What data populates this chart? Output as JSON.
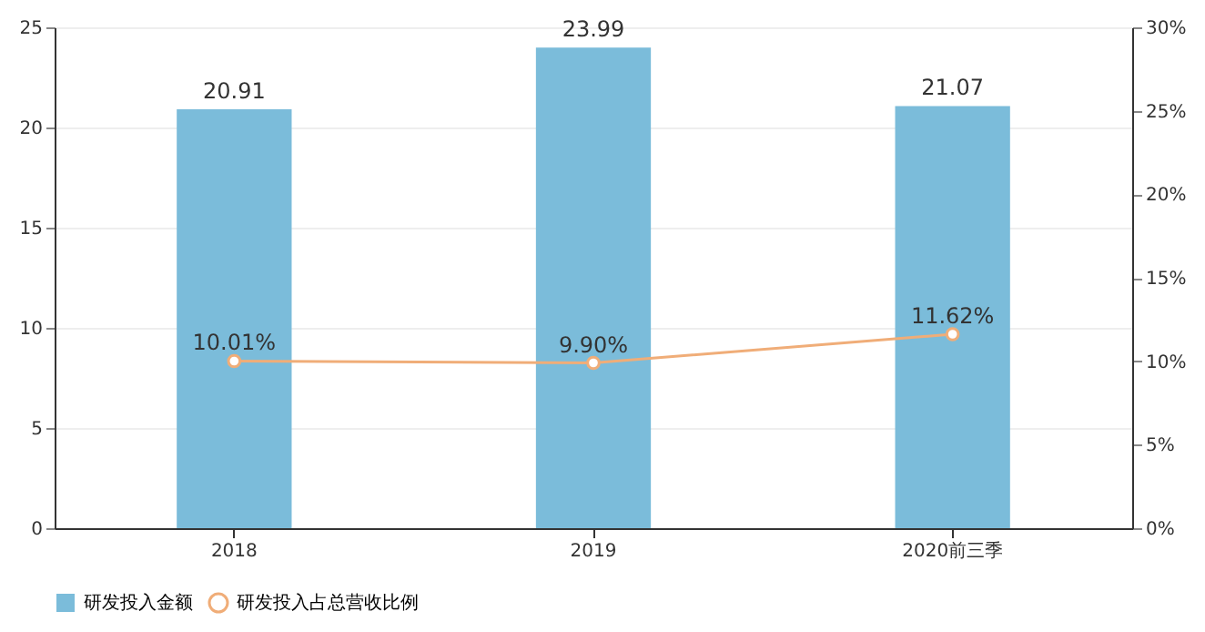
{
  "chart_data": {
    "type": "bar",
    "categories": [
      "2018",
      "2019",
      "2020前三季"
    ],
    "series": [
      {
        "name": "研发投入金额",
        "color": "#7bbcda",
        "values": [
          20.91,
          23.99,
          21.07
        ],
        "value_labels": [
          "20.91",
          "23.99",
          "21.07"
        ]
      },
      {
        "name": "研发投入占总营收比例",
        "type": "line",
        "axis": "y2",
        "color": "#f0ad78",
        "values": [
          10.01,
          9.9,
          11.62
        ],
        "value_labels": [
          "10.01%",
          "9.90%",
          "11.62%"
        ],
        "marker": "circle"
      }
    ],
    "ylim": [
      0,
      25
    ],
    "yticks": [
      0,
      5,
      10,
      15,
      20,
      25
    ],
    "y2lim": [
      0,
      30
    ],
    "y2ticks": [
      {
        "value": 0,
        "label": "0%"
      },
      {
        "value": 5,
        "label": "5%"
      },
      {
        "value": 10,
        "label": "10%"
      },
      {
        "value": 15,
        "label": "15%"
      },
      {
        "value": 20,
        "label": "20%"
      },
      {
        "value": 25,
        "label": "25%"
      },
      {
        "value": 30,
        "label": "30%"
      }
    ],
    "grid": "y",
    "legend": "bottom"
  }
}
